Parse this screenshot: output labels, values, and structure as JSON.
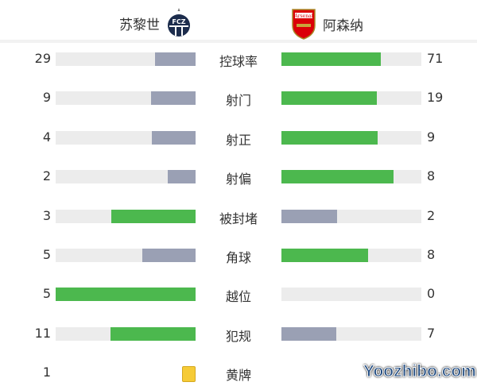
{
  "home": {
    "name": "苏黎世",
    "logo_text": "FCZ"
  },
  "away": {
    "name": "阿森纳",
    "logo_text": "Arsenal"
  },
  "colors": {
    "winner": "#4cb84e",
    "loser": "#9aa0b4",
    "track": "#ececec",
    "card": "#f6cb36"
  },
  "stats": [
    {
      "label": "控球率",
      "home": "29",
      "away": "71",
      "home_frac": 0.29,
      "away_frac": 0.71
    },
    {
      "label": "射门",
      "home": "9",
      "away": "19",
      "home_frac": 0.32,
      "away_frac": 0.68
    },
    {
      "label": "射正",
      "home": "4",
      "away": "9",
      "home_frac": 0.31,
      "away_frac": 0.69
    },
    {
      "label": "射偏",
      "home": "2",
      "away": "8",
      "home_frac": 0.2,
      "away_frac": 0.8
    },
    {
      "label": "被封堵",
      "home": "3",
      "away": "2",
      "home_frac": 0.6,
      "away_frac": 0.4
    },
    {
      "label": "角球",
      "home": "5",
      "away": "8",
      "home_frac": 0.38,
      "away_frac": 0.62
    },
    {
      "label": "越位",
      "home": "5",
      "away": "0",
      "home_frac": 1.0,
      "away_frac": 0.0
    },
    {
      "label": "犯规",
      "home": "11",
      "away": "7",
      "home_frac": 0.61,
      "away_frac": 0.39
    }
  ],
  "yellow": {
    "label": "黄牌",
    "home": "1"
  },
  "watermark": "Yoozhibo.com"
}
